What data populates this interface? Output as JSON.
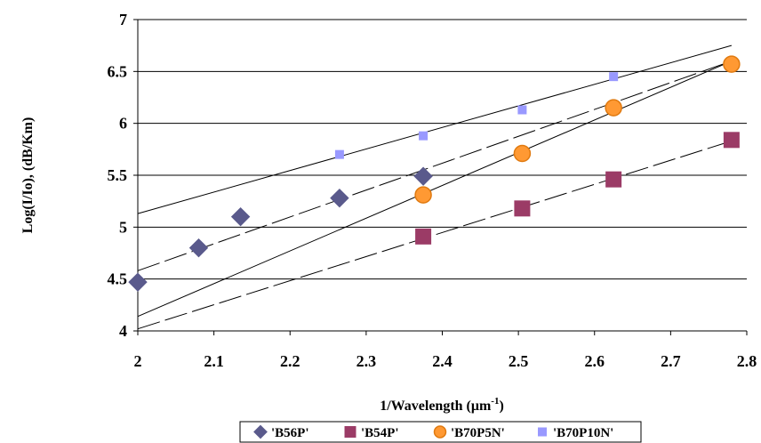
{
  "chart_data": {
    "type": "scatter",
    "title": "",
    "xlabel": "1/Wavelength (μm",
    "xlabel_sup": "-1",
    "xlabel_end": ")",
    "ylabel": "Log(I/Io), (dB/Km)",
    "xlim": [
      2,
      2.8
    ],
    "ylim": [
      4,
      7
    ],
    "x_ticks": [
      2,
      2.1,
      2.2,
      2.3,
      2.4,
      2.5,
      2.6,
      2.7,
      2.8
    ],
    "x_tick_labels": [
      "2",
      "2.1",
      "2.2",
      "2.3",
      "2.4",
      "2.5",
      "2.6",
      "2.7",
      "2.8"
    ],
    "y_ticks": [
      4,
      4.5,
      5,
      5.5,
      6,
      6.5,
      7
    ],
    "y_tick_labels": [
      "4",
      "4.5",
      "5",
      "5.5",
      "6",
      "6.5",
      "7"
    ],
    "grid": "horizontal",
    "legend_position": "bottom",
    "series": [
      {
        "name": "'B56P'",
        "marker": "diamond",
        "color": "#5a5a8c",
        "points": [
          [
            2.0,
            4.47
          ],
          [
            2.08,
            4.8
          ],
          [
            2.135,
            5.1
          ],
          [
            2.265,
            5.28
          ],
          [
            2.375,
            5.49
          ]
        ],
        "trendline": {
          "style": "dashed",
          "from": [
            2.0,
            4.58
          ],
          "to": [
            2.78,
            6.6
          ]
        }
      },
      {
        "name": "'B54P'",
        "marker": "square",
        "color": "#9b3b66",
        "points": [
          [
            2.375,
            4.91
          ],
          [
            2.505,
            5.18
          ],
          [
            2.625,
            5.46
          ],
          [
            2.78,
            5.84
          ]
        ],
        "trendline": {
          "style": "dashed",
          "from": [
            2.0,
            4.02
          ],
          "to": [
            2.78,
            5.83
          ]
        }
      },
      {
        "name": "'B70P5N'",
        "marker": "circle",
        "color": "#ff9933",
        "edge_color": "#e07a10",
        "points": [
          [
            2.375,
            5.31
          ],
          [
            2.505,
            5.71
          ],
          [
            2.625,
            6.15
          ],
          [
            2.78,
            6.57
          ]
        ],
        "trendline": {
          "style": "solid",
          "from": [
            2.0,
            4.14
          ],
          "to": [
            2.78,
            6.6
          ]
        }
      },
      {
        "name": "'B70P10N'",
        "marker": "small-square",
        "color": "#9999ff",
        "points": [
          [
            2.265,
            5.7
          ],
          [
            2.375,
            5.88
          ],
          [
            2.505,
            6.13
          ],
          [
            2.625,
            6.45
          ]
        ],
        "trendline": {
          "style": "solid",
          "from": [
            2.0,
            5.13
          ],
          "to": [
            2.78,
            6.75
          ]
        }
      }
    ]
  }
}
